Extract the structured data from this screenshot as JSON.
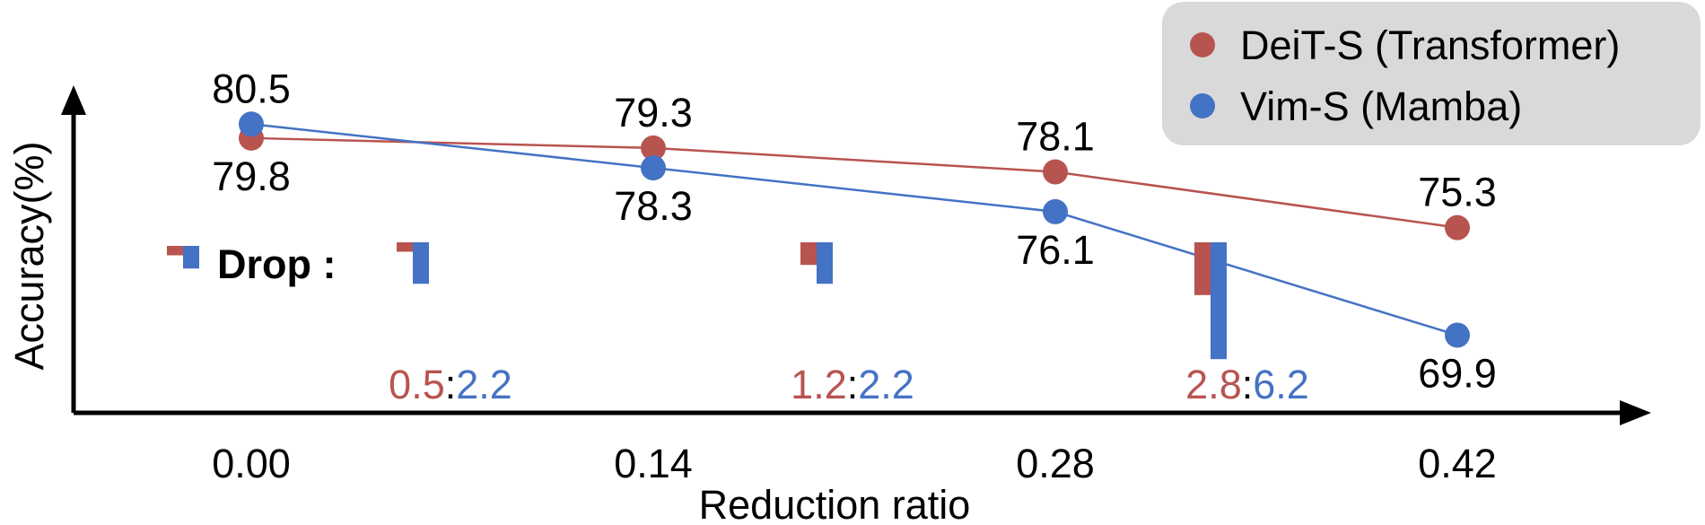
{
  "colors": {
    "transformer": "#B85450",
    "mamba": "#4472C4",
    "axis": "#000000",
    "legend_bg": "#D9D9D9"
  },
  "chart_data": {
    "type": "line",
    "title": "",
    "xlabel": "Reduction ratio",
    "ylabel": "Accuracy(%)",
    "x": [
      0.0,
      0.14,
      0.28,
      0.42
    ],
    "x_tick_labels": [
      "0.00",
      "0.14",
      "0.28",
      "0.42"
    ],
    "ylim": [
      66,
      82
    ],
    "series": [
      {
        "name": "DeiT-S (Transformer)",
        "color_key": "transformer",
        "values": [
          79.8,
          79.3,
          78.1,
          75.3
        ],
        "labels": [
          "79.8",
          "79.3",
          "78.1",
          "75.3"
        ]
      },
      {
        "name": "Vim-S (Mamba)",
        "color_key": "mamba",
        "values": [
          80.5,
          78.3,
          76.1,
          69.9
        ],
        "labels": [
          "80.5",
          "78.3",
          "76.1",
          "69.9"
        ]
      }
    ],
    "legend": {
      "placement": "top-right",
      "entries": [
        "DeiT-S (Transformer)",
        "Vim-S (Mamba)"
      ]
    },
    "drop": {
      "label": "Drop :",
      "legend_drop": {
        "transformer": 0.5,
        "mamba": 1.2
      },
      "groups": [
        {
          "transformer": 0.5,
          "mamba": 2.2,
          "t_label": "0.5",
          "sep": ":",
          "m_label": "2.2"
        },
        {
          "transformer": 1.2,
          "mamba": 2.2,
          "t_label": "1.2",
          "sep": ":",
          "m_label": "2.2"
        },
        {
          "transformer": 2.8,
          "mamba": 6.2,
          "t_label": "2.8",
          "sep": ":",
          "m_label": "6.2"
        }
      ]
    }
  }
}
